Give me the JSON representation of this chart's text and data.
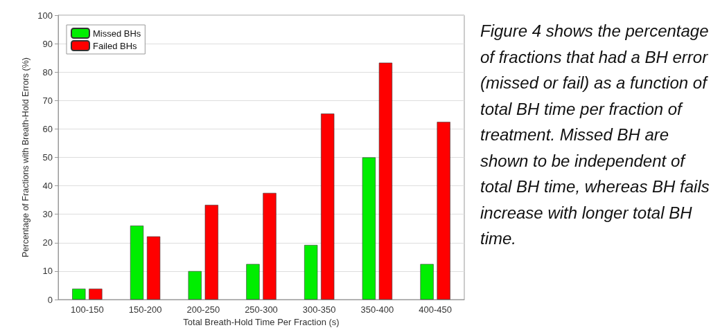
{
  "chart_data": {
    "type": "bar",
    "categories": [
      "100-150",
      "150-200",
      "200-250",
      "250-300",
      "300-350",
      "350-400",
      "400-450"
    ],
    "series": [
      {
        "name": "Missed BHs",
        "color": "#00ee00",
        "values": [
          3.8,
          26,
          10,
          12.5,
          19.2,
          50,
          12.5
        ]
      },
      {
        "name": "Failed BHs",
        "color": "#ff0000",
        "values": [
          3.8,
          22.2,
          33.3,
          37.5,
          65.4,
          83.3,
          62.5
        ]
      }
    ],
    "xlabel": "Total Breath-Hold Time Per Fraction (s)",
    "ylabel": "Percentage of Fractions with Breath-Hold Errors (%)",
    "ylim": [
      0,
      100
    ],
    "yticks": [
      0,
      10,
      20,
      30,
      40,
      50,
      60,
      70,
      80,
      90,
      100
    ],
    "grid": "y",
    "legend": "top left",
    "annotations": [
      "Figure 4 shows the percentage of fractions that had a BH error (missed or fail) as a function of total BH time per fraction of treatment. Missed BH are shown to be independent of total BH time, whereas BH fails increase with longer total BH time."
    ]
  }
}
